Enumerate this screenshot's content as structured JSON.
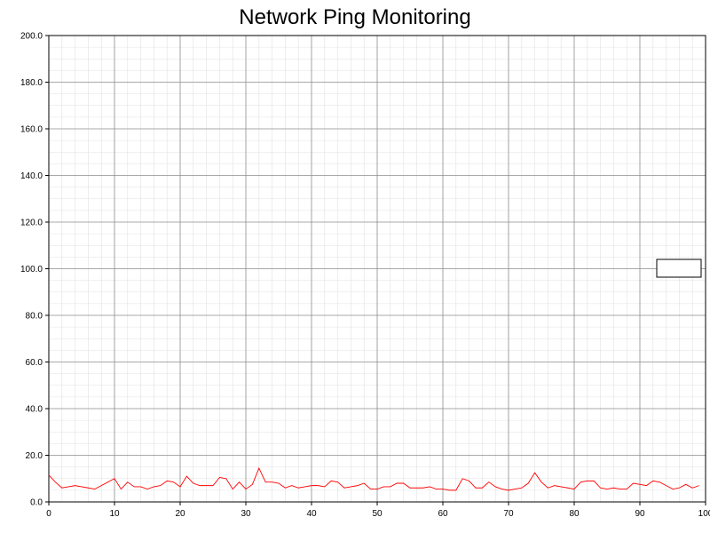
{
  "chart_data": {
    "type": "line",
    "title": "Network Ping Monitoring",
    "xlabel": "",
    "ylabel": "",
    "xlim": [
      0,
      100
    ],
    "ylim": [
      0,
      200
    ],
    "x_ticks": [
      "0",
      "10",
      "20",
      "30",
      "40",
      "50",
      "60",
      "70",
      "80",
      "90",
      "100"
    ],
    "y_ticks": [
      "0.0",
      "20.0",
      "40.0",
      "60.0",
      "80.0",
      "100.0",
      "120.0",
      "140.0",
      "160.0",
      "180.0",
      "200.0"
    ],
    "grid": true,
    "legend": "right (empty box)",
    "series": [
      {
        "color": "#ff0000",
        "x": [
          0,
          1,
          2,
          3,
          4,
          5,
          6,
          7,
          8,
          9,
          10,
          11,
          12,
          13,
          14,
          15,
          16,
          17,
          18,
          19,
          20,
          21,
          22,
          23,
          24,
          25,
          26,
          27,
          28,
          29,
          30,
          31,
          32,
          33,
          34,
          35,
          36,
          37,
          38,
          39,
          40,
          41,
          42,
          43,
          44,
          45,
          46,
          47,
          48,
          49,
          50,
          51,
          52,
          53,
          54,
          55,
          56,
          57,
          58,
          59,
          60,
          61,
          62,
          63,
          64,
          65,
          66,
          67,
          68,
          69,
          70,
          71,
          72,
          73,
          74,
          75,
          76,
          77,
          78,
          79,
          80,
          81,
          82,
          83,
          84,
          85,
          86,
          87,
          88,
          89,
          90,
          91,
          92,
          93,
          94,
          95,
          96,
          97,
          98,
          99
        ],
        "values": [
          11.5,
          8.5,
          6,
          6.5,
          7,
          6.5,
          6,
          5.5,
          7,
          8.5,
          10,
          5.5,
          8.5,
          6.5,
          6.5,
          5.5,
          6.5,
          7,
          9,
          8.5,
          6.5,
          11,
          8,
          7,
          7,
          7,
          10.5,
          10,
          5.5,
          8.5,
          5.5,
          7.5,
          14.5,
          8.5,
          8.5,
          8,
          6,
          7,
          6,
          6.5,
          7,
          7,
          6.5,
          9,
          8.5,
          6,
          6.5,
          7,
          8,
          5.5,
          5.5,
          6.5,
          6.5,
          8,
          8,
          6,
          6,
          6,
          6.5,
          5.5,
          5.5,
          5,
          5,
          10,
          9,
          6,
          6,
          8.5,
          6.5,
          5.5,
          5,
          5.5,
          6,
          8,
          12.5,
          8.5,
          6,
          7,
          6.5,
          6,
          5.5,
          8.5,
          9,
          9,
          6,
          5.5,
          6,
          5.5,
          5.5,
          8,
          7.5,
          7,
          9,
          8.5,
          7,
          5.5,
          6,
          7.5,
          6,
          7
        ]
      }
    ]
  }
}
